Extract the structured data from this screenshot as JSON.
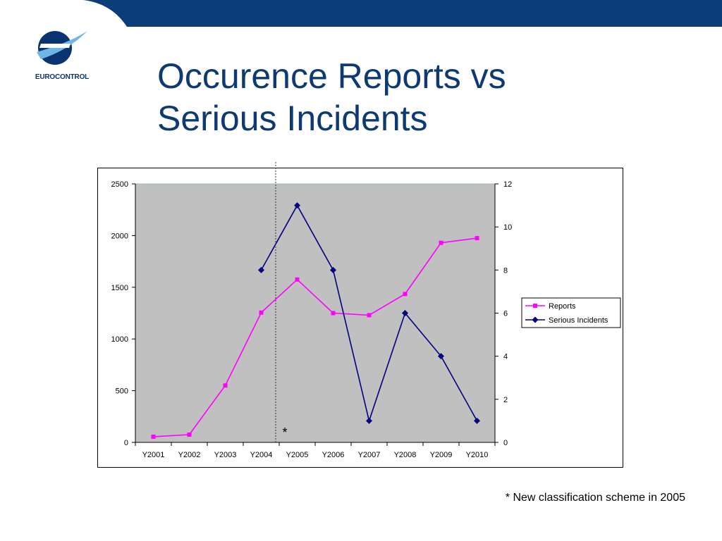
{
  "header": {
    "brand_color": "#0a3470",
    "logo": {
      "icon": "eurocontrol-logo-icon",
      "text": "EUROCONTROL"
    }
  },
  "slide": {
    "title_line1": "Occurence Reports vs",
    "title_line2": "Serious Incidents"
  },
  "chart_data": {
    "type": "line",
    "categories": [
      "Y2001",
      "Y2002",
      "Y2003",
      "Y2004",
      "Y2005",
      "Y2006",
      "Y2007",
      "Y2008",
      "Y2009",
      "Y2010"
    ],
    "y_left": {
      "lim": [
        0,
        2500
      ],
      "ticks": [
        0,
        500,
        1000,
        1500,
        2000,
        2500
      ]
    },
    "y_right": {
      "lim": [
        0,
        12
      ],
      "ticks": [
        0,
        2,
        4,
        6,
        8,
        10,
        12
      ]
    },
    "series": [
      {
        "name": "Reports",
        "axis": "left",
        "color": "#ff00ff",
        "marker": "square",
        "values": [
          55,
          75,
          550,
          1255,
          1575,
          1250,
          1230,
          1435,
          1930,
          1975
        ]
      },
      {
        "name": "Serious Incidents",
        "axis": "right",
        "color": "#000080",
        "marker": "diamond",
        "values": [
          null,
          null,
          null,
          8,
          11,
          8,
          1,
          6,
          4,
          1
        ]
      }
    ],
    "plot_background": "#c0c0c0",
    "grid": false,
    "legend_position": "right",
    "annotation": {
      "text": "*",
      "after_category": "Y2004"
    }
  },
  "footnote": "* New classification scheme in 2005"
}
